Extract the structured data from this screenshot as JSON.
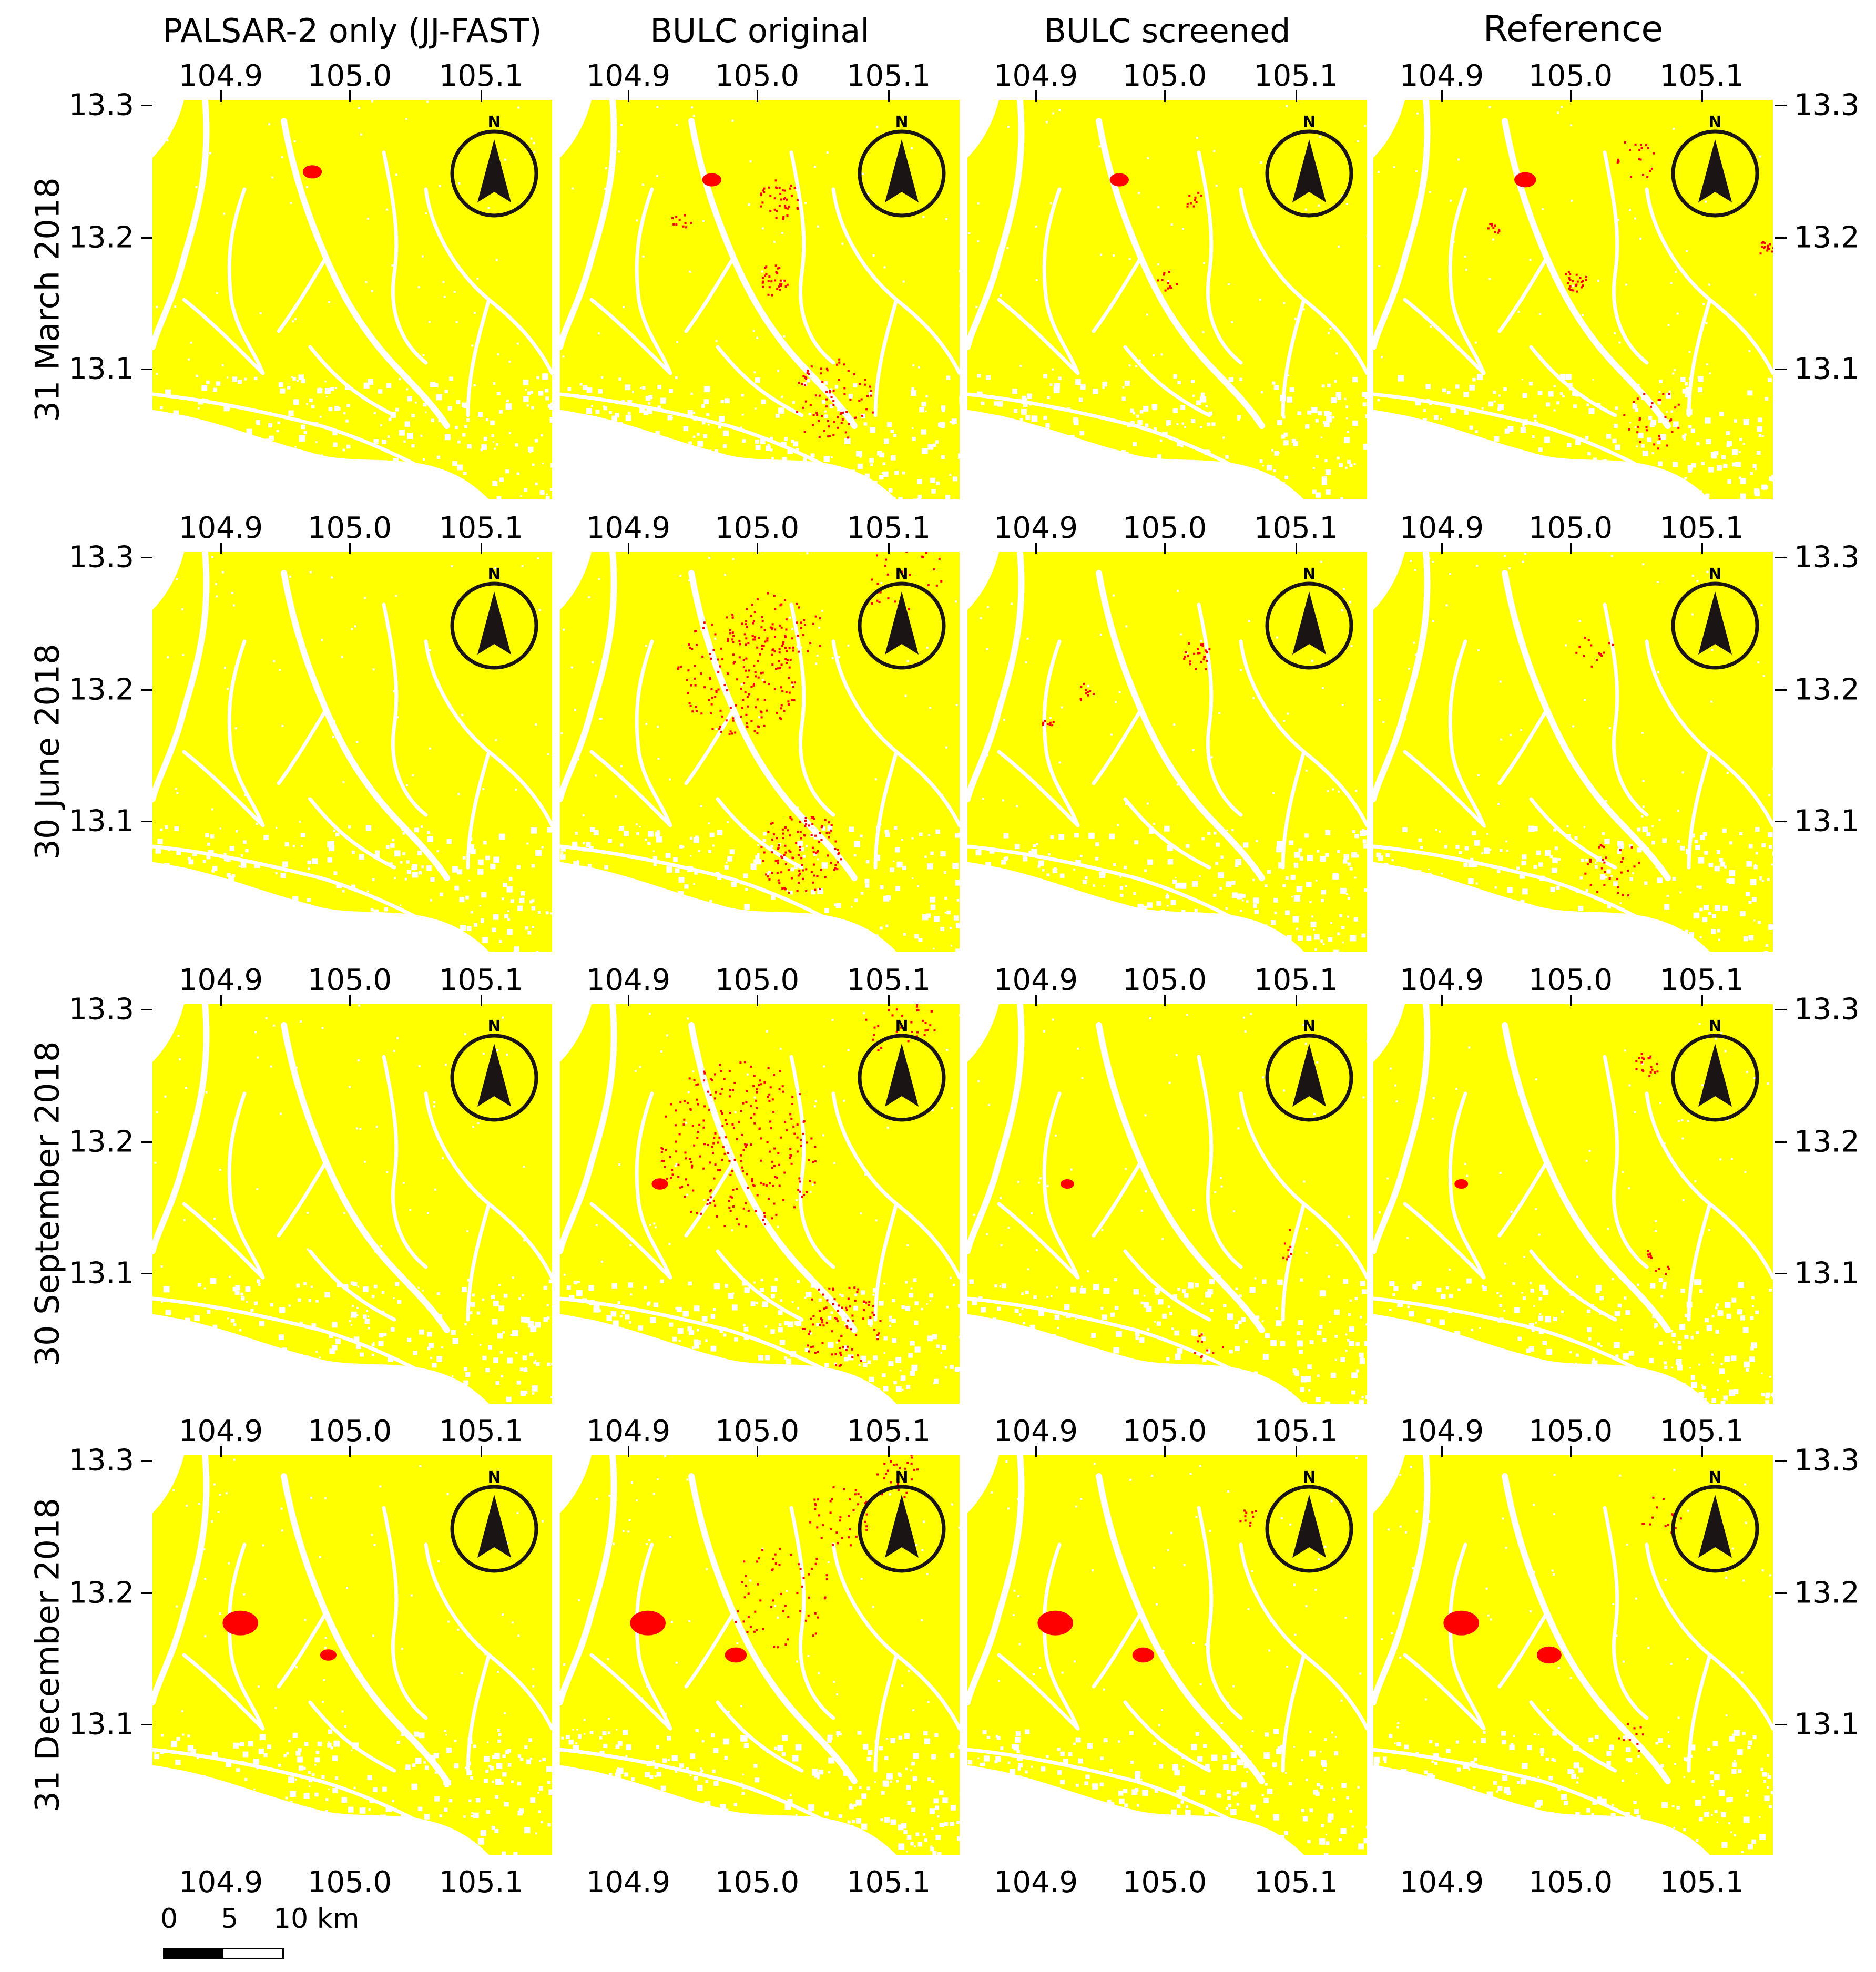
{
  "columns": [
    {
      "title": "PALSAR-2 only (JJ-FAST)"
    },
    {
      "title": "BULC original"
    },
    {
      "title": "BULC screened"
    },
    {
      "title": "Reference"
    }
  ],
  "rows": [
    {
      "date": "31 March 2018"
    },
    {
      "date": "30 June 2018"
    },
    {
      "date": "30 September 2018"
    },
    {
      "date": "31 December 2018"
    }
  ],
  "lon_ticks": [
    "104.9",
    "105.0",
    "105.1"
  ],
  "lat_ticks": [
    "13.3",
    "13.2",
    "13.1"
  ],
  "north_arrow_label": "N",
  "scale_bar": {
    "labels": [
      "0",
      "5",
      "10 km"
    ]
  },
  "colors": {
    "forest": "#ffff00",
    "deforestation": "#ff0000",
    "nonforest": "#ffffff",
    "arrow": "#1a1414"
  }
}
